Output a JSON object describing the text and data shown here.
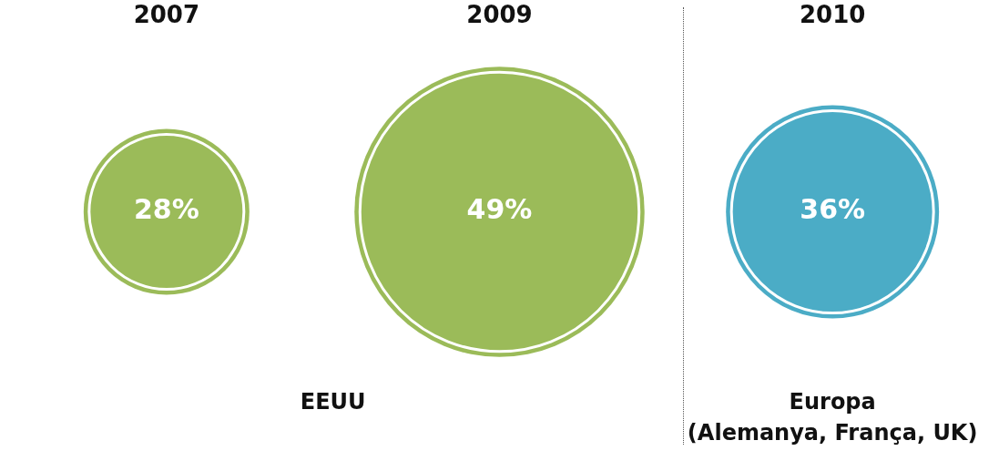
{
  "chart_data": {
    "type": "other",
    "categories": [
      "2007",
      "2009",
      "2010"
    ],
    "values": [
      28,
      49,
      36
    ],
    "colors": [
      "#9bbb59",
      "#9bbb59",
      "#4bacc6"
    ],
    "value_labels": [
      "28%",
      "49%",
      "36%"
    ],
    "annotations": [
      "EEUU",
      "Europa\n(Alemanya, França, UK)"
    ]
  }
}
